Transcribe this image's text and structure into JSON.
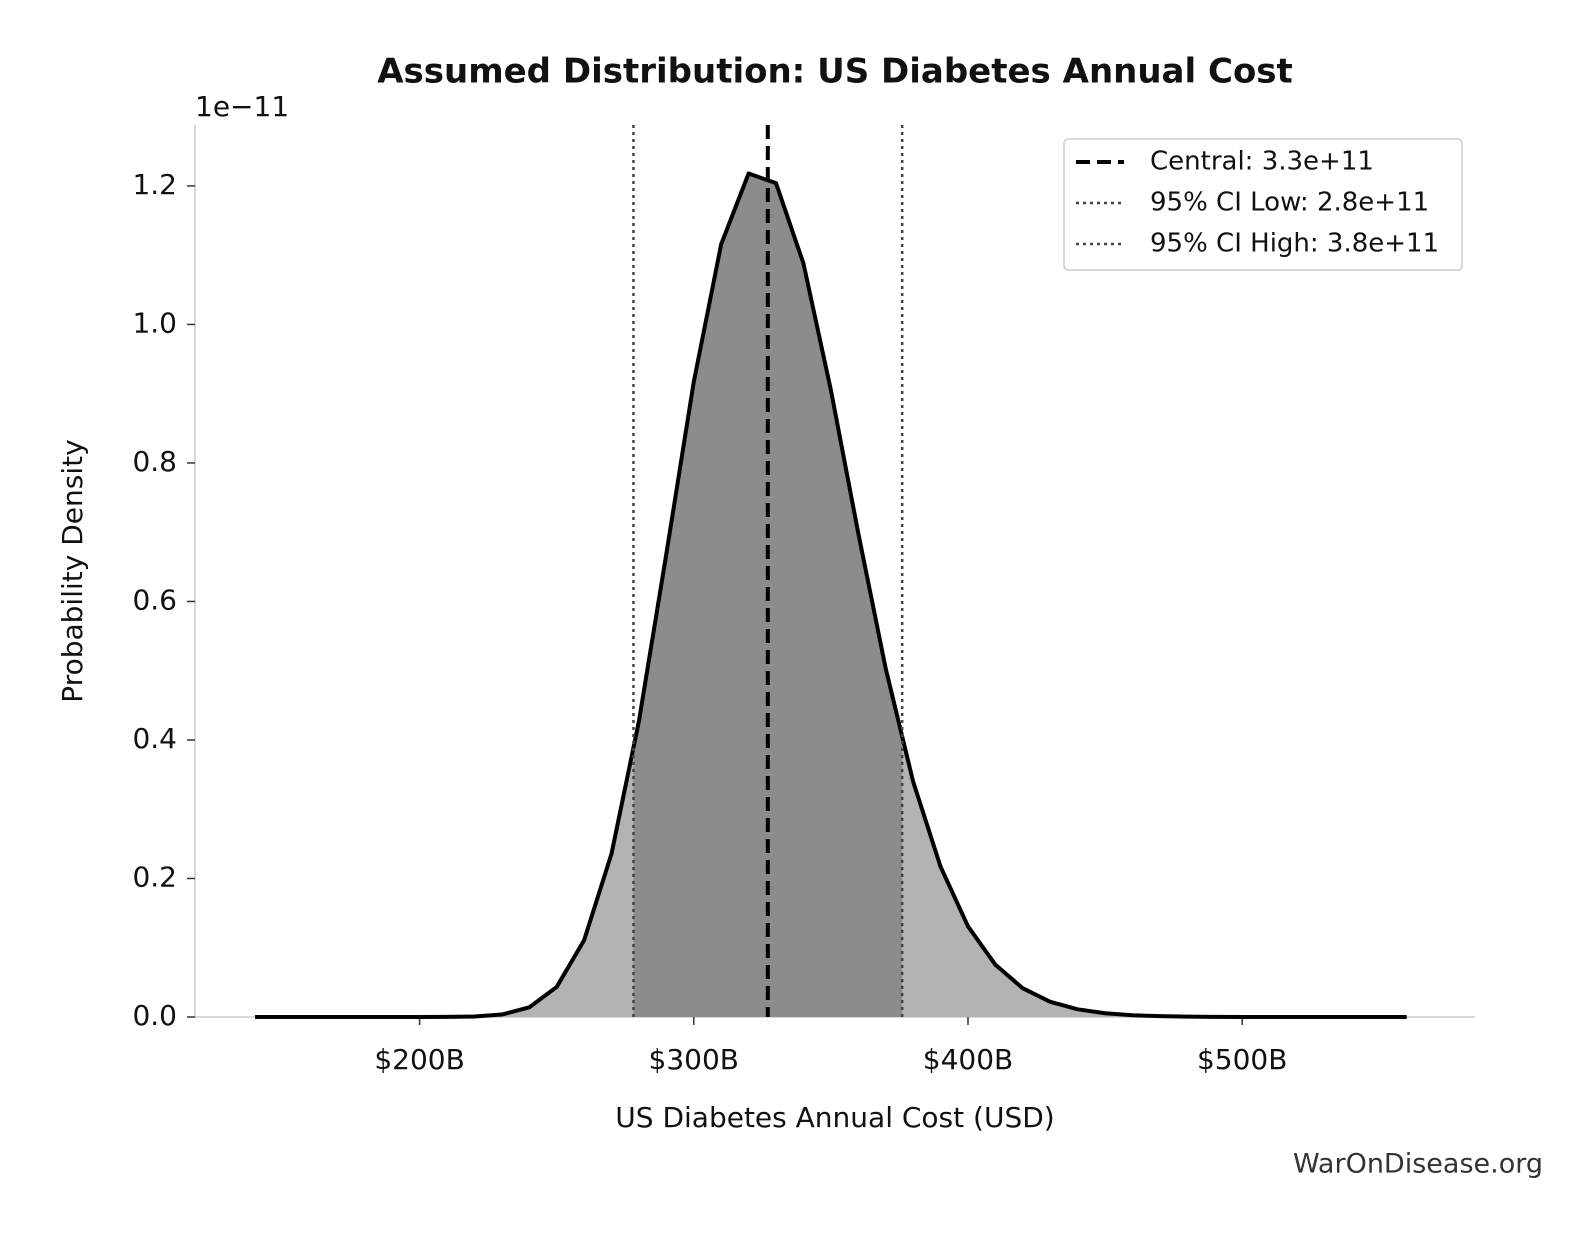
{
  "chart_data": {
    "type": "density",
    "title": "Assumed Distribution: US Diabetes Annual Cost",
    "x_label": "US Diabetes Annual Cost (USD)",
    "y_label": "Probability Density",
    "y_offset_label": "1e−11",
    "watermark": "WarOnDisease.org",
    "x": [
      140000000000.0,
      150000000000.0,
      160000000000.0,
      170000000000.0,
      180000000000.0,
      190000000000.0,
      200000000000.0,
      210000000000.0,
      220000000000.0,
      230000000000.0,
      240000000000.0,
      250000000000.0,
      260000000000.0,
      270000000000.0,
      280000000000.0,
      290000000000.0,
      300000000000.0,
      310000000000.0,
      320000000000.0,
      330000000000.0,
      340000000000.0,
      350000000000.0,
      360000000000.0,
      370000000000.0,
      380000000000.0,
      390000000000.0,
      400000000000.0,
      410000000000.0,
      420000000000.0,
      430000000000.0,
      440000000000.0,
      450000000000.0,
      460000000000.0,
      470000000000.0,
      480000000000.0,
      490000000000.0,
      500000000000.0,
      510000000000.0,
      520000000000.0,
      530000000000.0,
      540000000000.0,
      550000000000.0,
      560000000000.0
    ],
    "values": [
      0,
      0,
      0,
      0,
      0,
      0,
      0,
      0.0001,
      0.0007,
      0.0036,
      0.0139,
      0.0434,
      0.1108,
      0.2358,
      0.4273,
      0.6689,
      0.9171,
      1.116,
      1.218,
      1.204,
      1.088,
      0.9052,
      0.6984,
      0.503,
      0.3398,
      0.217,
      0.131,
      0.0754,
      0.0414,
      0.0219,
      0.0111,
      0.0054,
      0.0026,
      0.0012,
      0.0005,
      0.0002,
      0,
      0,
      0,
      0,
      0,
      0,
      0
    ],
    "line_color": "#000000",
    "fill_color": "#b3b3b3",
    "ci_fill_color": "#8c8c8c",
    "reference_lines": [
      {
        "name": "Central: 3.3e+11",
        "value": 327000000000.0,
        "style": "dashed",
        "color": "#000000"
      },
      {
        "name": "95% CI Low: 2.8e+11",
        "value": 278000000000.0,
        "style": "dotted",
        "color": "#444444"
      },
      {
        "name": "95% CI High: 3.8e+11",
        "value": 376000000000.0,
        "style": "dotted",
        "color": "#444444"
      }
    ],
    "xlim": [
      118100000000.0,
      584900000000.0
    ],
    "ylim": [
      0,
      1.288
    ],
    "xticks": [
      {
        "value": 200000000000.0,
        "label": "$200B"
      },
      {
        "value": 300000000000.0,
        "label": "$300B"
      },
      {
        "value": 400000000000.0,
        "label": "$400B"
      },
      {
        "value": 500000000000.0,
        "label": "$500B"
      }
    ],
    "yticks": [
      {
        "value": 0,
        "label": "0.0"
      },
      0.2,
      0.4,
      0.6,
      0.8,
      {
        "value": 1,
        "label": "1.0"
      },
      1.2
    ],
    "grid": false,
    "legend_position": "upper right"
  }
}
